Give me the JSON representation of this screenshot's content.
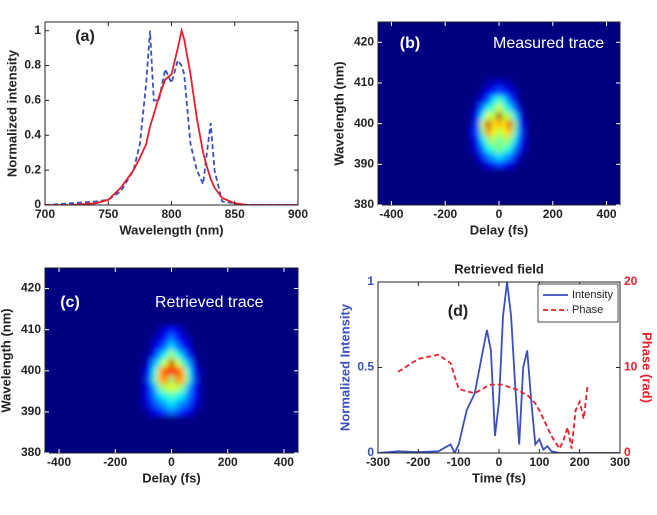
{
  "chart_data": [
    {
      "type": "line",
      "panel_label": "(a)",
      "xlabel": "Wavelength (nm)",
      "ylabel": "Normalized intensity",
      "x": [
        700,
        720,
        740,
        750,
        760,
        770,
        775,
        780,
        783,
        786,
        790,
        795,
        800,
        805,
        808,
        810,
        815,
        820,
        825,
        828,
        831,
        834,
        840,
        850,
        860,
        880,
        900
      ],
      "series": [
        {
          "color": "#3a4fc0",
          "dash": true,
          "values": [
            0,
            0.01,
            0.02,
            0.03,
            0.08,
            0.2,
            0.35,
            0.7,
            1.0,
            0.6,
            0.6,
            0.78,
            0.7,
            0.83,
            0.8,
            0.75,
            0.35,
            0.2,
            0.12,
            0.3,
            0.47,
            0.2,
            0.02,
            0.01,
            0,
            0,
            0
          ]
        },
        {
          "color": "#e8202a",
          "dash": false,
          "values": [
            0,
            0,
            0.01,
            0.03,
            0.1,
            0.2,
            0.27,
            0.35,
            0.45,
            0.52,
            0.62,
            0.72,
            0.75,
            0.9,
            1.0,
            0.95,
            0.75,
            0.5,
            0.3,
            0.22,
            0.15,
            0.1,
            0.04,
            0.01,
            0,
            0,
            0
          ]
        }
      ],
      "xlim": [
        700,
        900
      ],
      "xticks": [
        700,
        750,
        800,
        850,
        900
      ],
      "ylim": [
        0,
        1.05
      ],
      "yticks": [
        0,
        0.2,
        0.4,
        0.6,
        0.8,
        1
      ]
    },
    {
      "type": "heatmap",
      "panel_label": "(b)",
      "annotation": "Measured trace",
      "annotation_color": "#ffffff",
      "colormap": "jet",
      "xlabel": "Delay (fs)",
      "ylabel": "Wavelength (nm)",
      "x": [
        -120,
        -100,
        -80,
        -60,
        -40,
        -20,
        0,
        20,
        40,
        60,
        80,
        100,
        120
      ],
      "y": [
        390,
        392,
        394,
        396,
        398,
        400,
        402,
        404,
        406,
        408,
        410
      ],
      "z": [
        [
          0,
          0,
          0,
          0.05,
          0.1,
          0.15,
          0.2,
          0.15,
          0.1,
          0.05,
          0,
          0,
          0
        ],
        [
          0,
          0,
          0.05,
          0.15,
          0.25,
          0.3,
          0.35,
          0.3,
          0.25,
          0.15,
          0.05,
          0,
          0
        ],
        [
          0,
          0.05,
          0.1,
          0.25,
          0.4,
          0.45,
          0.5,
          0.45,
          0.4,
          0.25,
          0.1,
          0.05,
          0
        ],
        [
          0,
          0.05,
          0.15,
          0.35,
          0.5,
          0.55,
          0.45,
          0.55,
          0.5,
          0.35,
          0.15,
          0.05,
          0
        ],
        [
          0,
          0.1,
          0.2,
          0.5,
          0.75,
          0.6,
          0.55,
          0.6,
          0.7,
          0.45,
          0.2,
          0.05,
          0
        ],
        [
          0,
          0.05,
          0.2,
          0.6,
          0.95,
          0.65,
          0.7,
          0.65,
          0.9,
          0.5,
          0.15,
          0.05,
          0
        ],
        [
          0,
          0.05,
          0.15,
          0.4,
          0.6,
          0.55,
          0.95,
          0.55,
          0.55,
          0.35,
          0.1,
          0,
          0
        ],
        [
          0,
          0,
          0.1,
          0.25,
          0.4,
          0.45,
          0.6,
          0.45,
          0.35,
          0.2,
          0.05,
          0,
          0
        ],
        [
          0,
          0,
          0.05,
          0.1,
          0.2,
          0.35,
          0.45,
          0.35,
          0.2,
          0.1,
          0,
          0,
          0
        ],
        [
          0,
          0,
          0,
          0.05,
          0.1,
          0.15,
          0.2,
          0.15,
          0.1,
          0.05,
          0,
          0,
          0
        ],
        [
          0,
          0,
          0,
          0,
          0.05,
          0.05,
          0.1,
          0.05,
          0.05,
          0,
          0,
          0,
          0
        ]
      ],
      "xlim": [
        -450,
        450
      ],
      "xticks": [
        -400,
        -200,
        0,
        200,
        400
      ],
      "ylim": [
        380,
        425
      ],
      "yticks": [
        380,
        390,
        400,
        410,
        420
      ]
    },
    {
      "type": "heatmap",
      "panel_label": "(c)",
      "annotation": "Retrieved trace",
      "annotation_color": "#ffffff",
      "colormap": "jet",
      "xlabel": "Delay (fs)",
      "ylabel": "Wavelength (nm)",
      "x": [
        -120,
        -100,
        -80,
        -60,
        -40,
        -20,
        0,
        20,
        40,
        60,
        80,
        100,
        120
      ],
      "y": [
        390,
        392,
        394,
        396,
        398,
        400,
        402,
        404,
        406,
        408,
        410
      ],
      "z": [
        [
          0,
          0,
          0.05,
          0.1,
          0.15,
          0.2,
          0.25,
          0.2,
          0.15,
          0.1,
          0.05,
          0,
          0
        ],
        [
          0,
          0.05,
          0.1,
          0.2,
          0.25,
          0.3,
          0.35,
          0.3,
          0.25,
          0.2,
          0.1,
          0.05,
          0
        ],
        [
          0,
          0.05,
          0.15,
          0.25,
          0.35,
          0.4,
          0.45,
          0.4,
          0.35,
          0.25,
          0.15,
          0.05,
          0
        ],
        [
          0,
          0.05,
          0.15,
          0.3,
          0.5,
          0.55,
          0.6,
          0.55,
          0.5,
          0.3,
          0.15,
          0.05,
          0
        ],
        [
          0,
          0.05,
          0.2,
          0.45,
          0.7,
          0.75,
          0.5,
          0.75,
          0.7,
          0.45,
          0.2,
          0.05,
          0
        ],
        [
          0,
          0.05,
          0.15,
          0.4,
          0.7,
          0.85,
          0.8,
          0.85,
          0.7,
          0.4,
          0.15,
          0.05,
          0
        ],
        [
          0,
          0,
          0.1,
          0.3,
          0.45,
          0.6,
          0.95,
          0.6,
          0.45,
          0.3,
          0.1,
          0,
          0
        ],
        [
          0,
          0,
          0.05,
          0.15,
          0.3,
          0.4,
          0.55,
          0.4,
          0.3,
          0.15,
          0.05,
          0,
          0
        ],
        [
          0,
          0,
          0,
          0.1,
          0.15,
          0.25,
          0.35,
          0.25,
          0.15,
          0.1,
          0,
          0,
          0
        ],
        [
          0,
          0,
          0,
          0.05,
          0.1,
          0.15,
          0.25,
          0.15,
          0.1,
          0.05,
          0,
          0,
          0
        ],
        [
          0,
          0,
          0,
          0,
          0.05,
          0.1,
          0.15,
          0.1,
          0.05,
          0,
          0,
          0,
          0
        ]
      ],
      "xlim": [
        -450,
        450
      ],
      "xticks": [
        -400,
        -200,
        0,
        200,
        400
      ],
      "ylim": [
        380,
        425
      ],
      "yticks": [
        380,
        390,
        400,
        410,
        420
      ]
    },
    {
      "type": "line",
      "panel_label": "(d)",
      "title": "Retrieved field",
      "xlabel": "Time (fs)",
      "ylabel": "Normalized Intensity",
      "ylabel_color": "#3a4fc0",
      "y2label": "Phase (rad)",
      "y2label_color": "#e8202a",
      "legend": "upper right",
      "x": [
        -300,
        -250,
        -200,
        -150,
        -120,
        -110,
        -100,
        -80,
        -60,
        -40,
        -30,
        -20,
        -10,
        0,
        10,
        20,
        30,
        40,
        50,
        60,
        70,
        80,
        90,
        100,
        110,
        120,
        130,
        150,
        160,
        170,
        180,
        190,
        200,
        210,
        220,
        250,
        300
      ],
      "series": [
        {
          "name": "Intensity",
          "color": "#3a4fc0",
          "dash": false,
          "values": [
            0,
            0.01,
            0.005,
            0.01,
            0.05,
            0,
            0.05,
            0.25,
            0.35,
            0.6,
            0.72,
            0.6,
            0.1,
            0.3,
            0.8,
            1.0,
            0.8,
            0.4,
            0.05,
            0.5,
            0.6,
            0.3,
            0.05,
            0.08,
            0.02,
            0.04,
            0.01,
            0,
            0,
            0,
            0,
            0,
            0,
            0,
            0,
            0,
            0
          ]
        },
        {
          "name": "Phase",
          "color": "#e8202a",
          "dash": true,
          "axis": "y2",
          "values": [
            null,
            9.5,
            11,
            11.5,
            10.5,
            9,
            7.5,
            7.2,
            7,
            7.5,
            7.8,
            8,
            8,
            8,
            8,
            7.8,
            7.6,
            7.5,
            7.3,
            7,
            6.8,
            6.3,
            5.8,
            5,
            4,
            3,
            2,
            0.5,
            1.5,
            3,
            0.5,
            5,
            6,
            4,
            8,
            null,
            null
          ]
        }
      ],
      "xlim": [
        -300,
        300
      ],
      "xticks": [
        -300,
        -200,
        -100,
        0,
        100,
        200,
        300
      ],
      "ylim": [
        0,
        1
      ],
      "yticks": [
        0,
        0.5,
        1
      ],
      "y2lim": [
        0,
        20
      ],
      "y2ticks": [
        0,
        10,
        20
      ]
    }
  ]
}
